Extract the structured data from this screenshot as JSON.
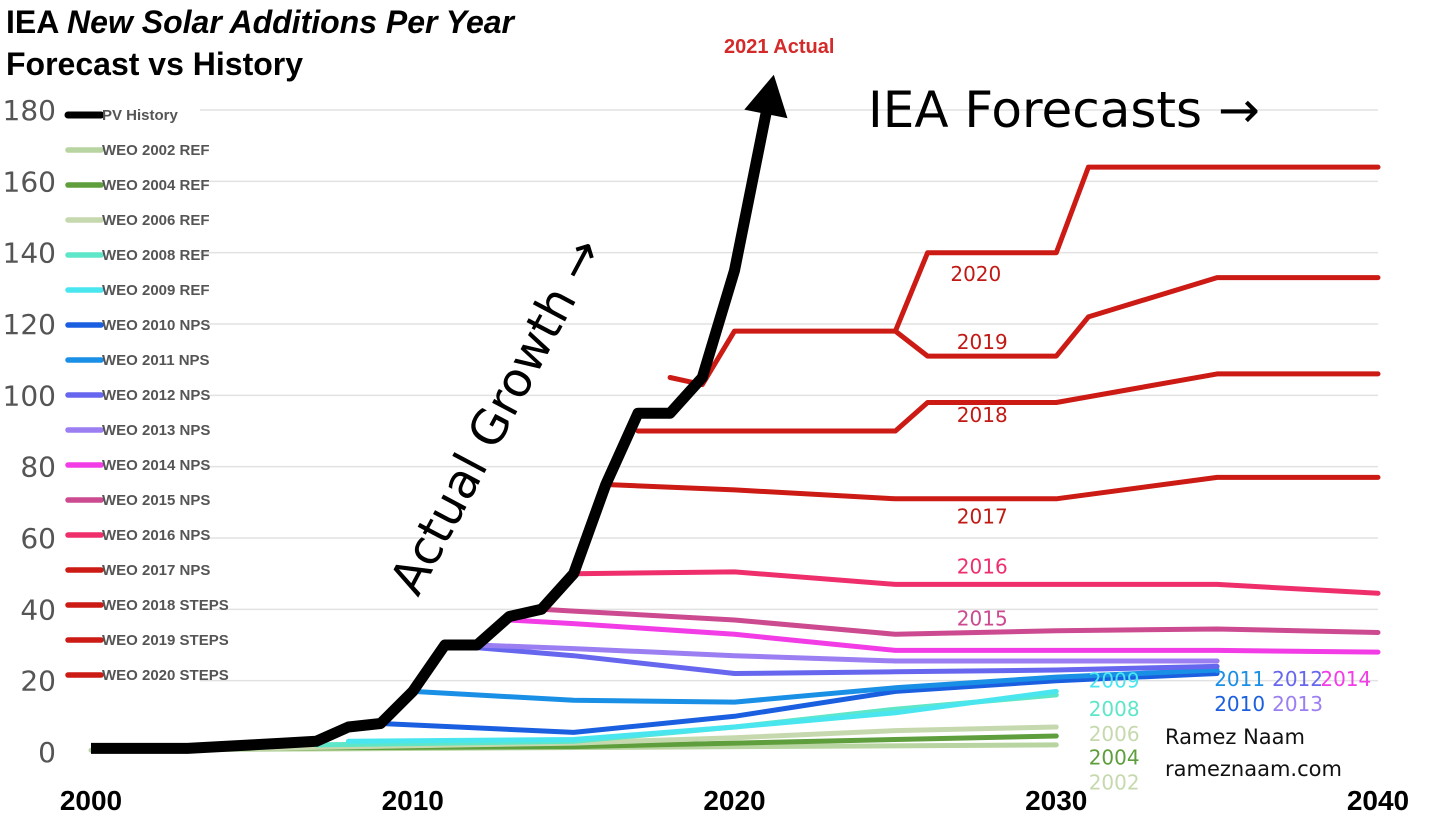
{
  "title": {
    "prefix": "IEA ",
    "italic": "New Solar Additions Per Year",
    "line2": "Forecast vs History"
  },
  "annotations": {
    "actual_2021": "2021 Actual",
    "forecasts": "IEA Forecasts →",
    "actual_growth": "Actual Growth →",
    "credit_name": "Ramez Naam",
    "credit_url": "rameznaam.com"
  },
  "chart_data": {
    "type": "line",
    "title": "IEA New Solar Additions Per Year Forecast vs History",
    "xlabel": "",
    "ylabel": "",
    "xlim": [
      2000,
      2040
    ],
    "ylim": [
      0,
      180
    ],
    "x_ticks": [
      2000,
      2010,
      2020,
      2030,
      2040
    ],
    "y_ticks": [
      0,
      20,
      40,
      60,
      80,
      100,
      120,
      140,
      160,
      180
    ],
    "grid": "horizontal",
    "legend_position": "top-left",
    "series": [
      {
        "name": "PV History",
        "color": "#000000",
        "points": [
          [
            2000,
            1
          ],
          [
            2003,
            1
          ],
          [
            2004,
            1.5
          ],
          [
            2005,
            2
          ],
          [
            2006,
            2.5
          ],
          [
            2007,
            3
          ],
          [
            2008,
            7
          ],
          [
            2009,
            8
          ],
          [
            2010,
            17
          ],
          [
            2011,
            30
          ],
          [
            2012,
            30
          ],
          [
            2013,
            38
          ],
          [
            2014,
            40
          ],
          [
            2015,
            50
          ],
          [
            2016,
            75
          ],
          [
            2017,
            95
          ],
          [
            2018,
            95
          ],
          [
            2019,
            105
          ],
          [
            2020,
            135
          ],
          [
            2021,
            180
          ]
        ]
      },
      {
        "name": "WEO 2002 REF",
        "color": "#b8d4a0",
        "points": [
          [
            2000,
            0.5
          ],
          [
            2030,
            2
          ]
        ]
      },
      {
        "name": "WEO 2004 REF",
        "color": "#5e9e3c",
        "points": [
          [
            2003,
            1
          ],
          [
            2015,
            1.5
          ],
          [
            2020,
            2.5
          ],
          [
            2025,
            3.5
          ],
          [
            2030,
            4.5
          ]
        ]
      },
      {
        "name": "WEO 2006 REF",
        "color": "#c6d9ae",
        "points": [
          [
            2005,
            1
          ],
          [
            2015,
            2.5
          ],
          [
            2020,
            4
          ],
          [
            2025,
            6
          ],
          [
            2030,
            7
          ]
        ]
      },
      {
        "name": "WEO 2008 REF",
        "color": "#5ee6c8",
        "points": [
          [
            2007,
            2
          ],
          [
            2015,
            3
          ],
          [
            2020,
            7
          ],
          [
            2025,
            12
          ],
          [
            2030,
            16
          ]
        ]
      },
      {
        "name": "WEO 2009 REF",
        "color": "#4ae6f0",
        "points": [
          [
            2008,
            3
          ],
          [
            2015,
            3.5
          ],
          [
            2020,
            7
          ],
          [
            2025,
            11
          ],
          [
            2030,
            17
          ]
        ]
      },
      {
        "name": "WEO 2010 NPS",
        "color": "#1a5fe0",
        "points": [
          [
            2009,
            8
          ],
          [
            2015,
            5.5
          ],
          [
            2020,
            10
          ],
          [
            2025,
            17
          ],
          [
            2030,
            20
          ],
          [
            2035,
            22
          ]
        ]
      },
      {
        "name": "WEO 2011 NPS",
        "color": "#1a8fe6",
        "points": [
          [
            2010,
            17
          ],
          [
            2015,
            14.5
          ],
          [
            2020,
            14
          ],
          [
            2025,
            18
          ],
          [
            2030,
            21
          ],
          [
            2035,
            23
          ]
        ]
      },
      {
        "name": "WEO 2012 NPS",
        "color": "#6666ee",
        "points": [
          [
            2011,
            30
          ],
          [
            2015,
            27
          ],
          [
            2020,
            22
          ],
          [
            2025,
            22.5
          ],
          [
            2030,
            23
          ],
          [
            2035,
            24
          ]
        ]
      },
      {
        "name": "WEO 2013 NPS",
        "color": "#9b7ef2",
        "points": [
          [
            2012,
            30
          ],
          [
            2015,
            29
          ],
          [
            2020,
            27
          ],
          [
            2025,
            25.5
          ],
          [
            2030,
            25.5
          ],
          [
            2035,
            25.5
          ]
        ]
      },
      {
        "name": "WEO 2014 NPS",
        "color": "#f23ce6",
        "points": [
          [
            2013,
            37
          ],
          [
            2015,
            36
          ],
          [
            2020,
            33
          ],
          [
            2025,
            28.5
          ],
          [
            2030,
            28.5
          ],
          [
            2035,
            28.5
          ],
          [
            2040,
            28
          ]
        ]
      },
      {
        "name": "WEO 2015 NPS",
        "color": "#cc4a90",
        "points": [
          [
            2014,
            40
          ],
          [
            2015,
            39.5
          ],
          [
            2020,
            37
          ],
          [
            2025,
            33
          ],
          [
            2030,
            34
          ],
          [
            2035,
            34.5
          ],
          [
            2040,
            33.5
          ]
        ]
      },
      {
        "name": "WEO 2016 NPS",
        "color": "#ee2f6c",
        "points": [
          [
            2015,
            50
          ],
          [
            2020,
            50.5
          ],
          [
            2025,
            47
          ],
          [
            2030,
            47
          ],
          [
            2035,
            47
          ],
          [
            2040,
            44.5
          ]
        ]
      },
      {
        "name": "WEO 2017 NPS",
        "color": "#cc1a14",
        "points": [
          [
            2016,
            75
          ],
          [
            2020,
            73.5
          ],
          [
            2025,
            71
          ],
          [
            2030,
            71
          ],
          [
            2035,
            77
          ],
          [
            2040,
            77
          ]
        ]
      },
      {
        "name": "WEO 2018 STEPS",
        "color": "#cc1a14",
        "points": [
          [
            2017,
            90
          ],
          [
            2025,
            90
          ],
          [
            2026,
            98
          ],
          [
            2030,
            98
          ],
          [
            2035,
            106
          ],
          [
            2040,
            106
          ]
        ]
      },
      {
        "name": "WEO 2019 STEPS",
        "color": "#cc1a14",
        "points": [
          [
            2018,
            105
          ],
          [
            2019,
            103
          ],
          [
            2020,
            118
          ],
          [
            2025,
            118
          ],
          [
            2026,
            111
          ],
          [
            2030,
            111
          ],
          [
            2031,
            122
          ],
          [
            2035,
            133
          ],
          [
            2040,
            133
          ]
        ]
      },
      {
        "name": "WEO 2020 STEPS",
        "color": "#cc1a14",
        "points": [
          [
            2025,
            118
          ],
          [
            2026,
            140
          ],
          [
            2030,
            140
          ],
          [
            2031,
            164
          ],
          [
            2040,
            164
          ]
        ]
      }
    ],
    "labels": [
      {
        "text": "2020",
        "x": 2027.5,
        "y": 134,
        "color": "#c01a14"
      },
      {
        "text": "2019",
        "x": 2027.7,
        "y": 115,
        "color": "#c01a14"
      },
      {
        "text": "2018",
        "x": 2027.7,
        "y": 94.5,
        "color": "#c01a14"
      },
      {
        "text": "2017",
        "x": 2027.7,
        "y": 66,
        "color": "#c01a14"
      },
      {
        "text": "2016",
        "x": 2027.7,
        "y": 52,
        "color": "#ee2f6c"
      },
      {
        "text": "2015",
        "x": 2027.7,
        "y": 37.5,
        "color": "#cc4a90"
      },
      {
        "text": "2009",
        "x": 2031.8,
        "y": 20,
        "color": "#4ae6f0"
      },
      {
        "text": "2008",
        "x": 2031.8,
        "y": 12,
        "color": "#5ee6c8"
      },
      {
        "text": "2006",
        "x": 2031.8,
        "y": 5,
        "color": "#c6d9ae"
      },
      {
        "text": "2004",
        "x": 2031.8,
        "y": -1.5,
        "color": "#5e9e3c"
      },
      {
        "text": "2002",
        "x": 2031.8,
        "y": -8.5,
        "color": "#c6d9ae"
      },
      {
        "text": "2011",
        "x": 2035.7,
        "y": 20.5,
        "color": "#1a8fe6"
      },
      {
        "text": "2010",
        "x": 2035.7,
        "y": 13.5,
        "color": "#1a5fe0"
      },
      {
        "text": "2012",
        "x": 2037.5,
        "y": 20.5,
        "color": "#6666ee"
      },
      {
        "text": "2013",
        "x": 2037.5,
        "y": 13.5,
        "color": "#9b7ef2"
      },
      {
        "text": "2014",
        "x": 2039.0,
        "y": 20.5,
        "color": "#f23ce6"
      }
    ]
  }
}
